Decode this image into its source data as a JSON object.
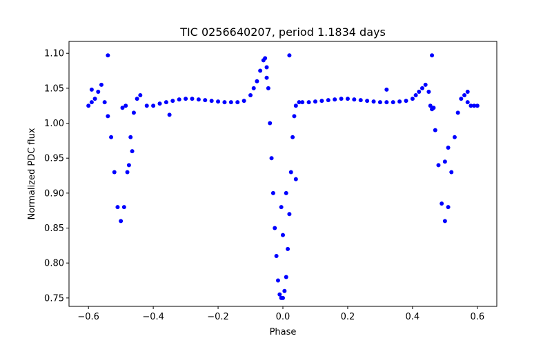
{
  "chart_data": {
    "type": "scatter",
    "title": "TIC 0256640207, period 1.1834 days",
    "xlabel": "Phase",
    "ylabel": "Normalized PDC flux",
    "xlim": [
      -0.66,
      0.66
    ],
    "ylim": [
      0.738,
      1.117
    ],
    "xticks": [
      -0.6,
      -0.4,
      -0.2,
      0.0,
      0.2,
      0.4,
      0.6
    ],
    "xtick_labels": [
      "−0.6",
      "−0.4",
      "−0.2",
      "0.0",
      "0.2",
      "0.4",
      "0.6"
    ],
    "yticks": [
      0.75,
      0.8,
      0.85,
      0.9,
      0.95,
      1.0,
      1.05,
      1.1
    ],
    "ytick_labels": [
      "0.75",
      "0.80",
      "0.85",
      "0.90",
      "0.95",
      "1.00",
      "1.05",
      "1.10"
    ],
    "grid": false,
    "marker_color": "#0000ff",
    "series": [
      {
        "x": [
          -0.6,
          -0.59,
          -0.58,
          -0.57,
          -0.56,
          -0.55,
          -0.54,
          -0.53,
          -0.52,
          -0.51,
          -0.5,
          -0.49,
          -0.48,
          -0.47,
          -0.46,
          -0.45,
          -0.44,
          -0.42,
          -0.4,
          -0.38,
          -0.36,
          -0.34,
          -0.32,
          -0.3,
          -0.28,
          -0.26,
          -0.24,
          -0.22,
          -0.2,
          -0.18,
          -0.16,
          -0.14,
          -0.12,
          -0.1,
          -0.09,
          -0.08,
          -0.07,
          -0.06,
          -0.055,
          -0.05,
          -0.045,
          -0.04,
          -0.035,
          -0.03,
          -0.025,
          -0.02,
          -0.015,
          -0.01,
          -0.005,
          0.0,
          0.005,
          0.01,
          0.015,
          0.02,
          0.025,
          0.03,
          0.035,
          0.04,
          0.05,
          0.06,
          0.08,
          0.1,
          0.12,
          0.14,
          0.16,
          0.18,
          0.2,
          0.22,
          0.24,
          0.26,
          0.28,
          0.3,
          0.32,
          0.34,
          0.36,
          0.38,
          0.4,
          0.41,
          0.42,
          0.43,
          0.44,
          0.45,
          0.46,
          0.47,
          0.48,
          0.49,
          0.5,
          0.51,
          0.52,
          0.53,
          0.54,
          0.55,
          0.56,
          0.57,
          0.58,
          0.59,
          0.6
        ],
        "y": [
          1.025,
          1.03,
          1.035,
          1.045,
          1.055,
          1.03,
          1.01,
          0.98,
          0.93,
          0.88,
          0.86,
          0.88,
          0.93,
          0.98,
          1.015,
          1.035,
          1.04,
          1.025,
          1.025,
          1.028,
          1.03,
          1.032,
          1.034,
          1.035,
          1.035,
          1.034,
          1.033,
          1.032,
          1.031,
          1.03,
          1.03,
          1.03,
          1.032,
          1.04,
          1.05,
          1.06,
          1.075,
          1.09,
          1.093,
          1.08,
          1.05,
          1.0,
          0.95,
          0.9,
          0.85,
          0.81,
          0.775,
          0.755,
          0.75,
          0.75,
          0.76,
          0.78,
          0.82,
          0.87,
          0.93,
          0.98,
          1.01,
          1.025,
          1.03,
          1.03,
          1.03,
          1.031,
          1.032,
          1.033,
          1.034,
          1.035,
          1.035,
          1.034,
          1.033,
          1.032,
          1.031,
          1.03,
          1.03,
          1.03,
          1.031,
          1.032,
          1.035,
          1.04,
          1.045,
          1.05,
          1.055,
          1.045,
          1.02,
          0.99,
          0.94,
          0.885,
          0.86,
          0.88,
          0.93,
          0.98,
          1.015,
          1.035,
          1.04,
          1.03,
          1.025,
          1.025,
          1.025
        ]
      },
      {
        "x": [
          -0.54,
          0.02,
          0.46,
          -0.495,
          -0.485,
          0.455,
          0.465,
          -0.35,
          0.32,
          -0.465,
          -0.475,
          0.5,
          0.51,
          -0.59,
          0.57,
          0.04,
          0.0,
          -0.05,
          0.01,
          -0.005
        ],
        "y": [
          1.097,
          1.097,
          1.097,
          1.022,
          1.025,
          1.025,
          1.022,
          1.012,
          1.048,
          0.96,
          0.94,
          0.945,
          0.965,
          1.048,
          1.045,
          0.92,
          0.84,
          1.065,
          0.9,
          0.88
        ]
      }
    ]
  }
}
